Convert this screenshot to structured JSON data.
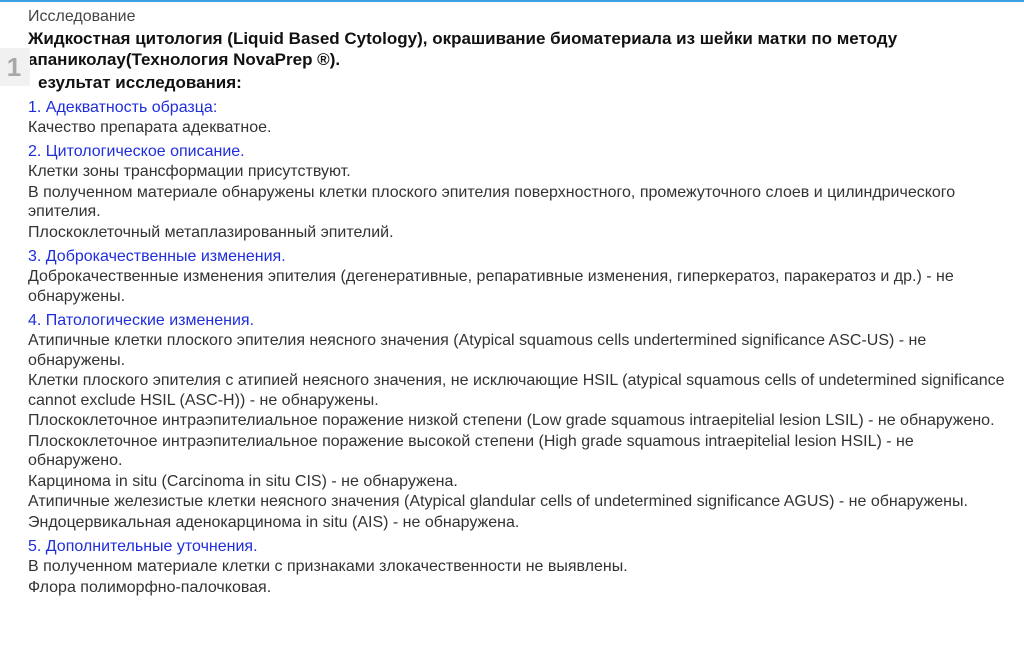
{
  "colors": {
    "topBorder": "#3aa0e0",
    "headingBlue": "#1f2ddb",
    "bodyText": "#333333",
    "boldText": "#111111",
    "pageTabBg": "#f1f1f1",
    "pageTabText": "#a8a8a8"
  },
  "typography": {
    "baseFontSize": 16,
    "titleFontSize": 17,
    "fontFamily": "Tahoma, Verdana, Arial, sans-serif"
  },
  "pageNumber": "1",
  "label": "Исследование",
  "title": "Жидкостная цитология (Liquid Based Cytology), окрашивание биоматериала из шейки матки по методу апаниколау(Технология NovaPrep ®).",
  "subtitle": "езультат исследования:",
  "sections": [
    {
      "heading": "1. Адекватность образца:",
      "lines": [
        "Качество препарата адекватное."
      ]
    },
    {
      "heading": "2. Цитологическое описание.",
      "lines": [
        "Клетки зоны трансформации присутствуют.",
        "В полученном материале обнаружены клетки плоского эпителия поверхностного, промежуточного слоев и цилиндрического эпителия.",
        "Плоскоклеточный метаплазированный эпителий."
      ]
    },
    {
      "heading": "3. Доброкачественные изменения.",
      "lines": [
        "Доброкачественные изменения эпителия (дегенеративные, репаративные изменения, гиперкератоз, паракератоз и др.) - не обнаружены."
      ]
    },
    {
      "heading": "4. Патологические изменения.",
      "lines": [
        "Атипичные клетки плоского эпителия неясного значения (Atypical squamous cells undertermined significance ASC-US) - не обнаружены.",
        "Клетки плоского эпителия с атипией неясного значения, не исключающие HSIL (atypical squamous cells of undetermined significance cannot exclude HSIL (ASC-H)) - не обнаружены.",
        "Плоскоклеточное интраэпителиальное поражение низкой степени (Low grade squamous intraepitelial lesion LSIL) - не обнаружено.",
        "Плоскоклеточное интраэпителиальное поражение высокой степени (High grade squamous intraepitelial lesion HSIL) - не обнаружено.",
        "Карцинома in situ (Carcinoma in situ CIS) - не обнаружена.",
        "Атипичные железистые клетки неясного значения (Atypical glandular cells of undetermined significance AGUS) - не обнаружены.",
        "Эндоцервикальная аденокарцинома in situ (AIS) - не обнаружена."
      ]
    },
    {
      "heading": "5. Дополнительные уточнения.",
      "lines": [
        "В полученном материале клетки с признаками злокачественности не выявлены.",
        "Флора полиморфно-палочковая."
      ]
    }
  ]
}
